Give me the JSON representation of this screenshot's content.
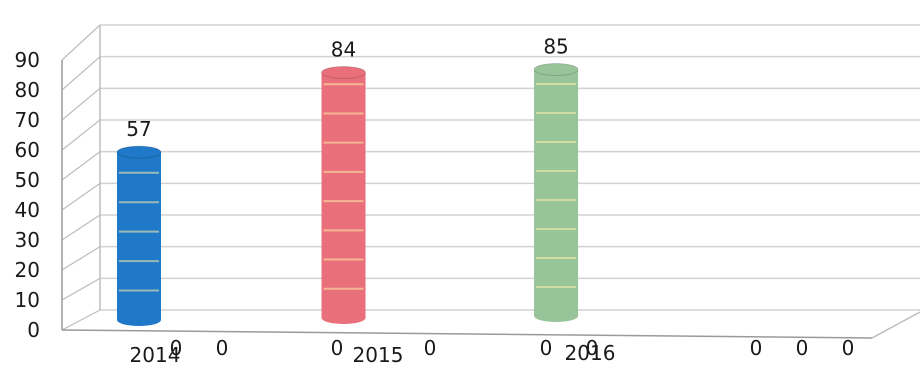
{
  "chart_data": {
    "type": "bar",
    "categories": [
      "2014",
      "2015",
      "2016",
      ""
    ],
    "series": [
      {
        "values": [
          57,
          84,
          85,
          0
        ],
        "colors": [
          "#1f78c8",
          "#e9707a",
          "#98c49a",
          "#cccccc"
        ]
      },
      {
        "values": [
          0,
          0,
          0,
          0
        ]
      },
      {
        "values": [
          0,
          0,
          0,
          0
        ]
      }
    ],
    "data_labels": [
      "57",
      "84",
      "85"
    ],
    "zero_labels": [
      [
        "0",
        "0"
      ],
      [
        "0",
        "0"
      ],
      [
        "0",
        "0"
      ],
      [
        "0",
        "0",
        "0"
      ]
    ],
    "y_ticks": [
      0,
      10,
      20,
      30,
      40,
      50,
      60,
      70,
      80,
      90
    ],
    "ylim": [
      0,
      90
    ],
    "grid": true,
    "style": "3d-cylinder"
  }
}
